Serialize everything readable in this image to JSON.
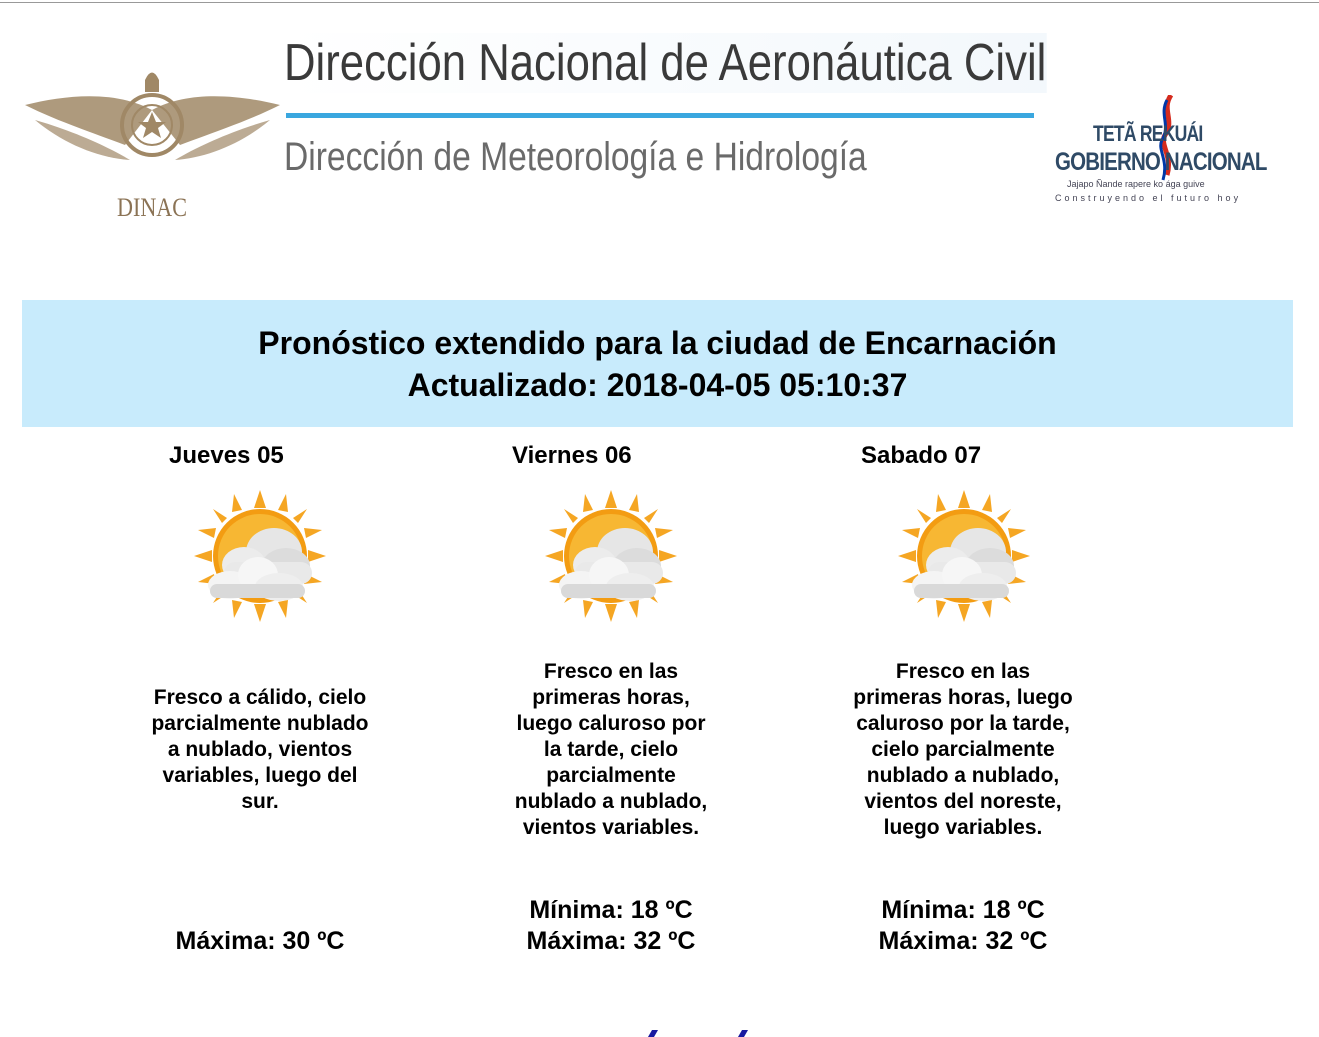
{
  "header": {
    "logo_left_text": "DINAC",
    "title": "Dirección Nacional de Aeronáutica Civil",
    "subtitle": "Dirección de Meteorología e Hidrología",
    "logo_right": {
      "line1": "TETÃ REKUÁI",
      "line2": "GOBIERNO NACIONAL",
      "line3": "Jajapo Ñande rapere ko ága guive",
      "line4": "Construyendo el futuro hoy"
    }
  },
  "banner": {
    "title": "Pronóstico extendido para la ciudad de Encarnación",
    "updated": "Actualizado: 2018-04-05 05:10:37",
    "bg_color": "#c8ebfc"
  },
  "days": [
    {
      "label": "Jueves 05",
      "icon": "partly-cloudy-icon",
      "description": "Fresco a cálido, cielo parcialmente nublado a nublado, vientos variables, luego del sur.",
      "min": "",
      "max": "Máxima: 30 ºC"
    },
    {
      "label": "Viernes 06",
      "icon": "partly-cloudy-icon",
      "description": "Fresco en las primeras horas, luego caluroso por la tarde, cielo parcialmente nublado a nublado, vientos variables.",
      "min": "Mínima: 18 ºC",
      "max": "Máxima: 32 ºC"
    },
    {
      "label": "Sabado 07",
      "icon": "partly-cloudy-icon",
      "description": "Fresco en las primeras horas, luego caluroso por la tarde, cielo parcialmente nublado a nublado, vientos del noreste, luego variables.",
      "min": "Mínima: 18 ºC",
      "max": "Máxima: 32 ºC"
    }
  ]
}
